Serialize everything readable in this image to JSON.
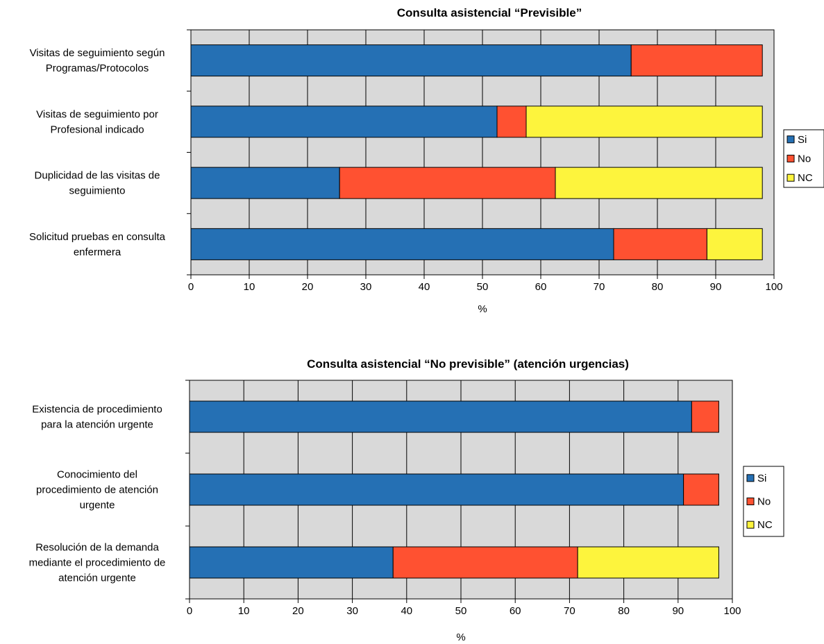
{
  "chart_data": [
    {
      "type": "bar",
      "orientation": "horizontal",
      "stacked": true,
      "title": "Consulta asistencial “Previsible”",
      "xlabel": "%",
      "ylabel": "",
      "xlim": [
        0,
        100
      ],
      "xticks": [
        "0",
        "10",
        "20",
        "30",
        "40",
        "50",
        "60",
        "70",
        "80",
        "90",
        "100"
      ],
      "categories": [
        [
          "Visitas de seguimiento según",
          "Programas/Protocolos"
        ],
        [
          "Visitas de seguimiento por",
          "Profesional indicado"
        ],
        [
          "Duplicidad de las visitas de",
          "seguimiento"
        ],
        [
          "Solicitud pruebas en consulta",
          "enfermera"
        ]
      ],
      "series": [
        {
          "name": "Si",
          "color": "#2570b4",
          "values": [
            75.5,
            52.5,
            25.5,
            72.5
          ]
        },
        {
          "name": "No",
          "color": "#ff5131",
          "values": [
            22.5,
            5,
            37,
            16
          ]
        },
        {
          "name": "NC",
          "color": "#fdf43d",
          "values": [
            0,
            40.5,
            35.5,
            9.5
          ]
        }
      ],
      "grid": true,
      "legend": "right",
      "plot_background": "#d9d9d9"
    },
    {
      "type": "bar",
      "orientation": "horizontal",
      "stacked": true,
      "title": "Consulta asistencial “No previsible” (atención urgencias)",
      "xlabel": "%",
      "ylabel": "",
      "xlim": [
        0,
        100
      ],
      "xticks": [
        "0",
        "10",
        "20",
        "30",
        "40",
        "50",
        "60",
        "70",
        "80",
        "90",
        "100"
      ],
      "categories": [
        [
          "Existencia de procedimiento",
          "para la atención urgente"
        ],
        [
          "Conocimiento del",
          "procedimiento de atención",
          "urgente"
        ],
        [
          "Resolución de la demanda",
          "mediante el procedimiento de",
          "atención urgente"
        ]
      ],
      "series": [
        {
          "name": "Si",
          "color": "#2570b4",
          "values": [
            92.5,
            91,
            37.5
          ]
        },
        {
          "name": "No",
          "color": "#ff5131",
          "values": [
            5,
            6.5,
            34
          ]
        },
        {
          "name": "NC",
          "color": "#fdf43d",
          "values": [
            0,
            0,
            26
          ]
        }
      ],
      "grid": true,
      "legend": "right",
      "plot_background": "#d9d9d9"
    }
  ]
}
